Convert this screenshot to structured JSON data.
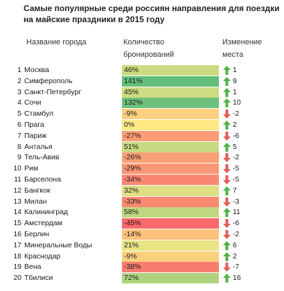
{
  "title": "Самые популярные среди россиян направления для поездки на майские праздники в 2015 году",
  "headers": {
    "city": "Название города",
    "pct": "Количество бронирований",
    "rank": "Изменение места"
  },
  "colors": {
    "up": "#50b347",
    "down": "#e35b5b",
    "scale_high": "#63be7b",
    "scale_mid": "#ffe984",
    "scale_low": "#f8696b"
  },
  "rows": [
    {
      "num": "1",
      "city": "Москва",
      "pct": "46%",
      "change": "1",
      "dir": "up"
    },
    {
      "num": "2",
      "city": "Симферополь",
      "pct": "141%",
      "change": "9",
      "dir": "up"
    },
    {
      "num": "3",
      "city": "Санкт-Петербург",
      "pct": "45%",
      "change": "1",
      "dir": "up"
    },
    {
      "num": "4",
      "city": "Сочи",
      "pct": "132%",
      "change": "10",
      "dir": "up"
    },
    {
      "num": "5",
      "city": "Стамбул",
      "pct": "-9%",
      "change": "-2",
      "dir": "down"
    },
    {
      "num": "6",
      "city": "Прага",
      "pct": "0%",
      "change": "2",
      "dir": "up"
    },
    {
      "num": "7",
      "city": "Париж",
      "pct": "-27%",
      "change": "-6",
      "dir": "down"
    },
    {
      "num": "8",
      "city": "Анталья",
      "pct": "51%",
      "change": "5",
      "dir": "up"
    },
    {
      "num": "9",
      "city": "Тель-Авив",
      "pct": "-26%",
      "change": "-2",
      "dir": "down"
    },
    {
      "num": "10",
      "city": "Рим",
      "pct": "-29%",
      "change": "-5",
      "dir": "down"
    },
    {
      "num": "11",
      "city": "Барселона",
      "pct": "-34%",
      "change": "-5",
      "dir": "down"
    },
    {
      "num": "12",
      "city": "Бангкок",
      "pct": "32%",
      "change": "7",
      "dir": "up"
    },
    {
      "num": "13",
      "city": "Милан",
      "pct": "-33%",
      "change": "-3",
      "dir": "down"
    },
    {
      "num": "14",
      "city": "Калининград",
      "pct": "58%",
      "change": "11",
      "dir": "up"
    },
    {
      "num": "15",
      "city": "Амстердам",
      "pct": "-45%",
      "change": "-6",
      "dir": "down"
    },
    {
      "num": "16",
      "city": "Берлин",
      "pct": "-14%",
      "change": "-2",
      "dir": "down"
    },
    {
      "num": "17",
      "city": "Минеральные Воды",
      "pct": "21%",
      "change": "6",
      "dir": "up"
    },
    {
      "num": "18",
      "city": "Краснодар",
      "pct": "-9%",
      "change": "2",
      "dir": "up"
    },
    {
      "num": "19",
      "city": "Вена",
      "pct": "-38%",
      "change": "-7",
      "dir": "down"
    },
    {
      "num": "20",
      "city": "Тбилиси",
      "pct": "72%",
      "change": "16",
      "dir": "up"
    }
  ]
}
